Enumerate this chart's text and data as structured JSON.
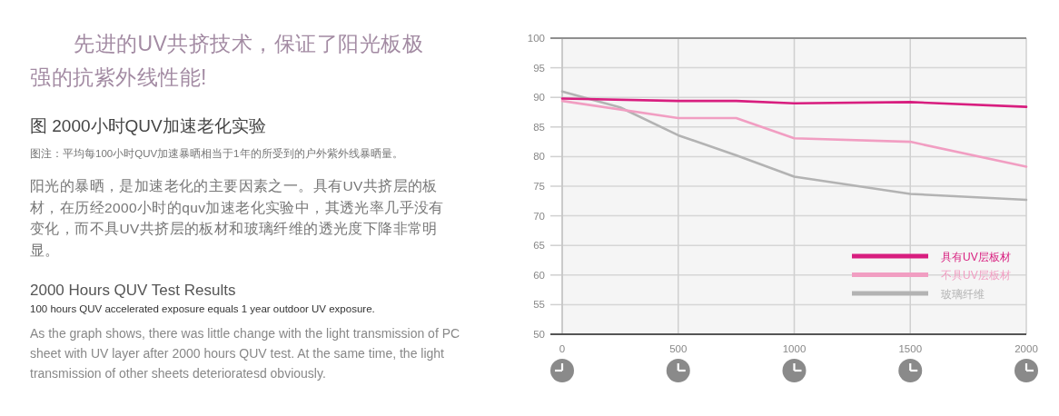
{
  "chart_data": {
    "type": "line",
    "title": "先进的UV共挤技术，保证了阳光板极强的抗紫外线性能!",
    "subtitle": "图 2000小时QUV加速老化实验",
    "annotations": [
      "图注：平均每100小时QUV加速暴晒相当于1年的所受到的户外紫外线暴晒量。",
      "阳光的暴晒，是加速老化的主要因素之一。具有UV共挤层的板材，在历经2000小时的quv加速老化实验中，其透光率几乎没有变化，而不具UV共挤层的板材和玻璃纤维的透光度下降非常明显。",
      "2000 Hours QUV Test Results",
      "100 hours QUV accelerated exposure equals 1 year outdoor UV exposure.",
      "As the graph shows, there was little change with the light transmission of PC sheet with UV layer after 2000 hours QUV test. At the same time, the light transmission of other sheets deterioratesd obviously."
    ],
    "xlim": [
      0,
      2000
    ],
    "xticks": [
      0,
      500,
      1000,
      1500,
      2000
    ],
    "ylim": [
      50,
      100
    ],
    "yticks": [
      50,
      55,
      60,
      65,
      70,
      75,
      80,
      85,
      90,
      95,
      100
    ],
    "grid": true,
    "legend": "bottom right",
    "series": [
      {
        "name": "具有UV层板材",
        "color": "#d81e7f",
        "x": [
          0,
          500,
          750,
          1000,
          1500,
          2000
        ],
        "values": [
          89.8,
          89.4,
          89.4,
          89.0,
          89.2,
          88.4
        ]
      },
      {
        "name": "不具UV层板材",
        "color": "#f19ec2",
        "x": [
          0,
          500,
          750,
          1000,
          1500,
          2000
        ],
        "values": [
          89.4,
          86.5,
          86.5,
          83.1,
          82.5,
          78.3
        ]
      },
      {
        "name": "玻璃纤维",
        "color": "#b3b3b3",
        "x": [
          0,
          250,
          500,
          750,
          1000,
          1500,
          2000
        ],
        "values": [
          91.0,
          88.3,
          83.6,
          80.2,
          76.6,
          73.7,
          72.7
        ]
      }
    ]
  }
}
